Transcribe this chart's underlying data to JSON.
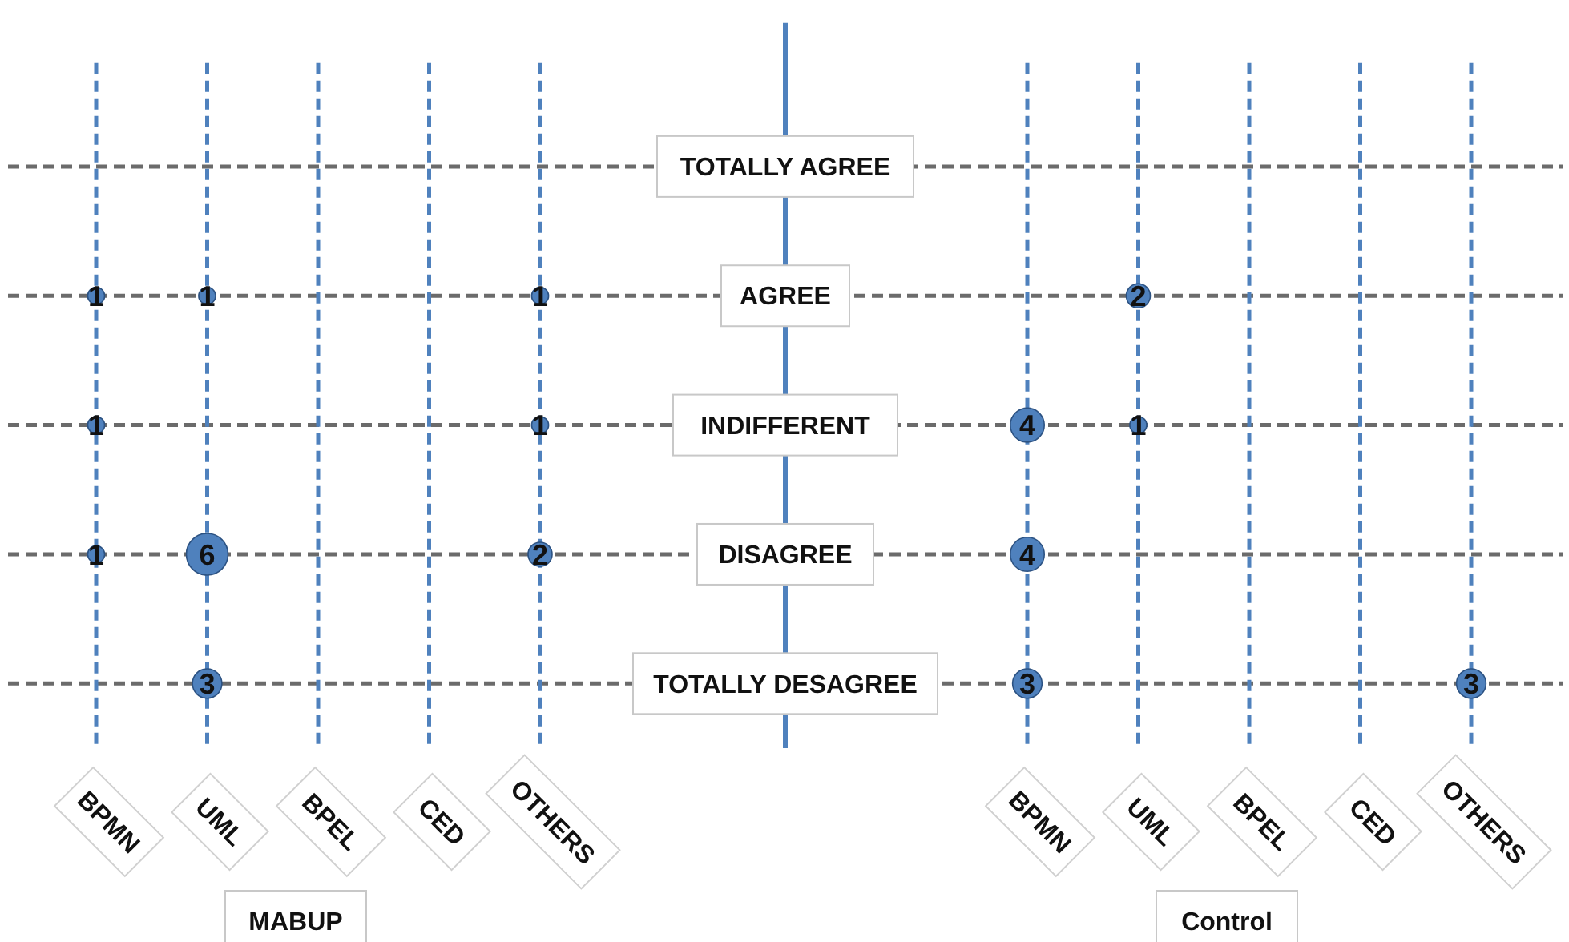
{
  "chart_data": {
    "type": "heatmap",
    "categories": [
      "BPMN",
      "UML",
      "BPEL",
      "CED",
      "OTHERS",
      "BPMN",
      "UML",
      "BPEL",
      "CED",
      "OTHERS"
    ],
    "y_categories": [
      "TOTALLY AGREE",
      "AGREE",
      "INDIFFERENT",
      "DISAGREE",
      "TOTALLY DESAGREE"
    ],
    "grid": true,
    "annotations": [
      "MABUP",
      "Control"
    ],
    "cells": [
      [
        null,
        null,
        null,
        null,
        null,
        null,
        null,
        null,
        null,
        null
      ],
      [
        1,
        1,
        null,
        null,
        1,
        null,
        2,
        null,
        null,
        null
      ],
      [
        1,
        null,
        null,
        null,
        1,
        4,
        1,
        null,
        null,
        null
      ],
      [
        1,
        6,
        null,
        null,
        2,
        4,
        null,
        null,
        null,
        null
      ],
      [
        null,
        3,
        null,
        null,
        null,
        3,
        null,
        null,
        null,
        3
      ]
    ],
    "cell_labels": [
      [
        null,
        null,
        null,
        null,
        null,
        null,
        null,
        null,
        null,
        null
      ],
      [
        "1",
        "1",
        null,
        null,
        "1",
        null,
        "2",
        null,
        null,
        null
      ],
      [
        "1",
        null,
        null,
        null,
        "1",
        "4",
        "1",
        null,
        null,
        null
      ],
      [
        "1",
        "6",
        null,
        null,
        "2",
        "4",
        null,
        null,
        null,
        null
      ],
      [
        null,
        "3",
        null,
        null,
        null,
        "3",
        null,
        null,
        null,
        "3"
      ]
    ]
  }
}
